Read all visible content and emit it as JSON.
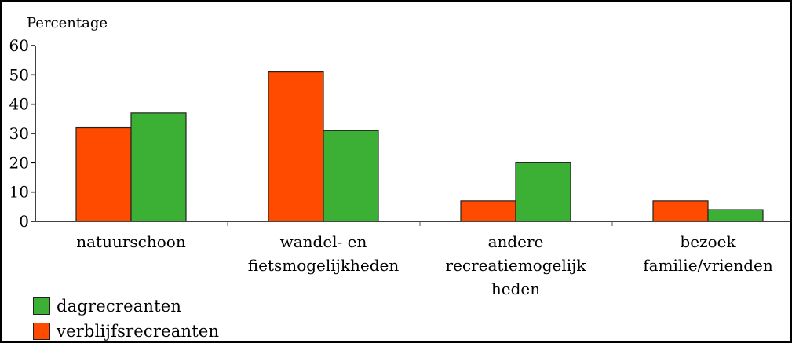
{
  "chart_data": {
    "type": "bar",
    "ylabel": "Percentage",
    "ylim": [
      0,
      60
    ],
    "yticks": [
      0,
      10,
      20,
      30,
      40,
      50,
      60
    ],
    "categories": [
      [
        "natuurschoon"
      ],
      [
        "wandel- en",
        "fietsmogelijkheden"
      ],
      [
        "andere",
        "recreatiemogelijk",
        "heden"
      ],
      [
        "bezoek",
        "familie/vrienden"
      ]
    ],
    "series": [
      {
        "name": "verblijfsrecreanten",
        "color": "#ff4b00",
        "values": [
          32,
          51,
          7,
          7
        ]
      },
      {
        "name": "dagrecreanten",
        "color": "#3cb034",
        "values": [
          37,
          31,
          20,
          4
        ]
      }
    ],
    "legend_order": [
      1,
      0
    ],
    "legend": "bottom-left",
    "grid": false
  }
}
